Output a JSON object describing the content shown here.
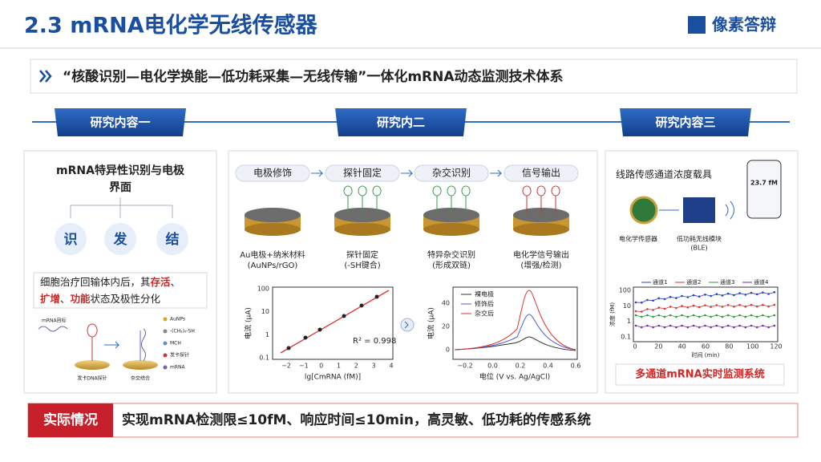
{
  "header": {
    "title": "2.3  mRNA电化学无线传感器",
    "logo": "像素答辩"
  },
  "banner": "“核酸识别—电化学换能—低功耗采集—无线传输”一体化mRNA动态监测技术体系",
  "sections": [
    {
      "heading": "研究内容一",
      "title_lines": [
        "mRNA特异性识别与电极",
        "界面"
      ],
      "circles": [
        "识",
        "发",
        "结"
      ],
      "note_lines": [
        [
          {
            "text": "细胞治疗回输体内后，其",
            "highlight": false
          },
          {
            "text": "存活",
            "highlight": true
          },
          {
            "text": "、",
            "highlight": false
          }
        ],
        [
          {
            "text": "扩增",
            "highlight": true
          },
          {
            "text": "、",
            "highlight": false
          },
          {
            "text": "功能",
            "highlight": true
          },
          {
            "text": "状态及极性分化",
            "highlight": false
          }
        ]
      ],
      "diagram": {
        "target": "mRNA目标",
        "probe": "发卡DNA探针",
        "hybrid": "杂交结合",
        "legend": [
          "AuNPs",
          "-(CH₂)₆-SH",
          "MCH",
          "发卡探针",
          "mRNA"
        ]
      }
    },
    {
      "heading": "研究内二",
      "steps": [
        {
          "name": "电极修饰",
          "caption": [
            "Au电极+纳米材料",
            "(AuNPs/rGO)"
          ]
        },
        {
          "name": "探针固定",
          "caption": [
            "探针固定",
            "(-SH键合)"
          ]
        },
        {
          "name": "杂交识别",
          "caption": [
            "特异杂交识别",
            "(形成双链)"
          ]
        },
        {
          "name": "信号输出",
          "caption": [
            "电化学信号输出",
            "(增强/检测)"
          ]
        }
      ],
      "calibration": {
        "y_label": "电流 (μA)",
        "x_label": "lg[CmRNA (fM)]",
        "r2": "R² = 0.998",
        "xticks": [
          "−2",
          "−1",
          "0",
          "1",
          "2",
          "3",
          "4"
        ],
        "yticks": [
          "0.1",
          "1",
          "10",
          "100"
        ]
      },
      "voltammetry": {
        "y_label": "电流 (μA)",
        "x_label": "电位 (V vs. Ag/AgCl)",
        "legend": [
          "裸电极",
          "修饰后",
          "杂交后"
        ],
        "xticks": [
          "−0.2",
          "0.0",
          "0.2",
          "0.4",
          "0.6"
        ],
        "yticks": [
          "0",
          "20",
          "40"
        ]
      }
    },
    {
      "heading": "研究内容三",
      "title": "线路传感通道浓度载具",
      "phone_value": "23.7 fM",
      "sensor": "电化学传感器",
      "module": [
        "低功耗无线模块",
        "(BLE)"
      ],
      "plot": {
        "legend": [
          "通道1",
          "通道2",
          "通道3",
          "通道4"
        ],
        "y_label": "浓度 (fM)",
        "x_label": "时间 (min)",
        "xticks": [
          "0",
          "20",
          "40",
          "60",
          "80",
          "100",
          "120"
        ],
        "yticks": [
          "0.1",
          "1",
          "10",
          "100"
        ]
      },
      "caption": "多通道mRNA实时监测系统"
    }
  ],
  "conclusion": {
    "label": "实际情况",
    "text": "实现mRNA检测限≤10fM、响应时间≤10min，高灵敏、低功耗的传感系统"
  }
}
